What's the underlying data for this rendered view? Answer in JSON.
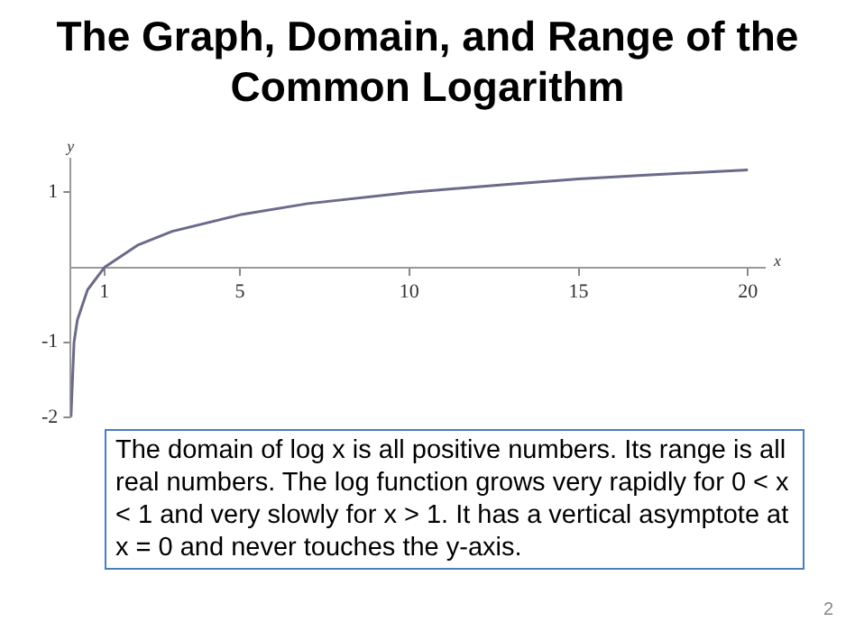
{
  "chart_data": {
    "type": "line",
    "title": "The Graph, Domain, and Range of the Common Logarithm",
    "xlabel": "x",
    "ylabel": "y",
    "x": [
      0.01,
      0.1,
      0.2,
      0.5,
      1,
      2,
      3,
      5,
      7,
      10,
      13,
      15,
      17,
      20
    ],
    "series": [
      {
        "color": "#6a6a8a",
        "values": [
          -2,
          -1,
          -0.7,
          -0.3,
          0,
          0.3,
          0.48,
          0.7,
          0.85,
          1,
          1.11,
          1.18,
          1.23,
          1.3
        ]
      }
    ],
    "xlim": [
      0,
      20.5
    ],
    "xticks": [
      1,
      5,
      10,
      15,
      20
    ],
    "ylim": [
      -2,
      1.45
    ],
    "yticks": [
      -2,
      -1,
      1
    ],
    "grid": false,
    "legend": false,
    "marker": "none",
    "line_style": "solid",
    "annotations": [
      "The domain of log x is all positive numbers.  Its range is all real numbers. The log function grows very rapidly for 0 < x < 1 and very slowly for x > 1. It has a vertical asymptote at x = 0 and never touches the y-axis.",
      "2"
    ]
  }
}
